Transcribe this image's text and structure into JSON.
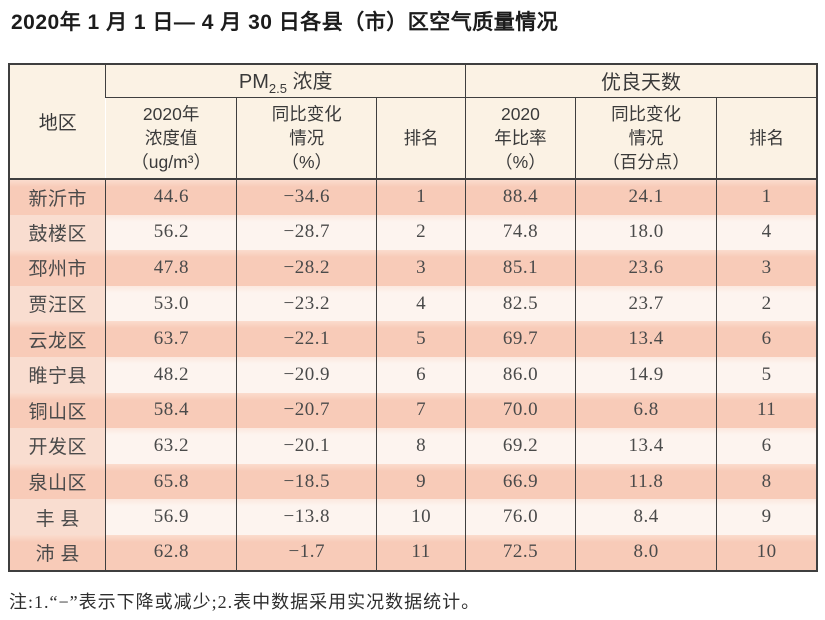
{
  "title": "2020年 1 月 1 日— 4 月 30 日各县（市）区空气质量情况",
  "footnote": "注:1.“−”表示下降或减少;2.表中数据采用实况数据统计。",
  "colors": {
    "peach": "#f8cbb8",
    "peach_top": "#fbdccd",
    "row_light": "#fdf4ef",
    "row_light_top": "#fce8df",
    "region_light": "#f9ddd0",
    "header_bg": "#fbf2e4",
    "border": "#3f3f3f",
    "title_color": "#1c1c1c",
    "header_text": "#3a3a3a",
    "data_text": "#4a4a4a"
  },
  "table": {
    "region_header": "地区",
    "pm_group": {
      "prefix": "PM",
      "sub": "2.5",
      "suffix": " 浓度"
    },
    "good_days_label": "优良天数",
    "subheaders": [
      "2020年\n浓度值\n（ug/m³）",
      "同比变化\n情况\n（%）",
      "排名",
      "2020\n年比率\n（%）",
      "同比变化\n情况\n（百分点）",
      "排名"
    ],
    "rows": [
      [
        "新沂市",
        "44.6",
        "−34.6",
        "1",
        "88.4",
        "24.1",
        "1"
      ],
      [
        "鼓楼区",
        "56.2",
        "−28.7",
        "2",
        "74.8",
        "18.0",
        "4"
      ],
      [
        "邳州市",
        "47.8",
        "−28.2",
        "3",
        "85.1",
        "23.6",
        "3"
      ],
      [
        "贾汪区",
        "53.0",
        "−23.2",
        "4",
        "82.5",
        "23.7",
        "2"
      ],
      [
        "云龙区",
        "63.7",
        "−22.1",
        "5",
        "69.7",
        "13.4",
        "6"
      ],
      [
        "睢宁县",
        "48.2",
        "−20.9",
        "6",
        "86.0",
        "14.9",
        "5"
      ],
      [
        "铜山区",
        "58.4",
        "−20.7",
        "7",
        "70.0",
        "6.8",
        "11"
      ],
      [
        "开发区",
        "63.2",
        "−20.1",
        "8",
        "69.2",
        "13.4",
        "6"
      ],
      [
        "泉山区",
        "65.8",
        "−18.5",
        "9",
        "66.9",
        "11.8",
        "8"
      ],
      [
        "丰 县",
        "56.9",
        "−13.8",
        "10",
        "76.0",
        "8.4",
        "9"
      ],
      [
        "沛 县",
        "62.8",
        "−1.7",
        "11",
        "72.5",
        "8.0",
        "10"
      ]
    ]
  }
}
